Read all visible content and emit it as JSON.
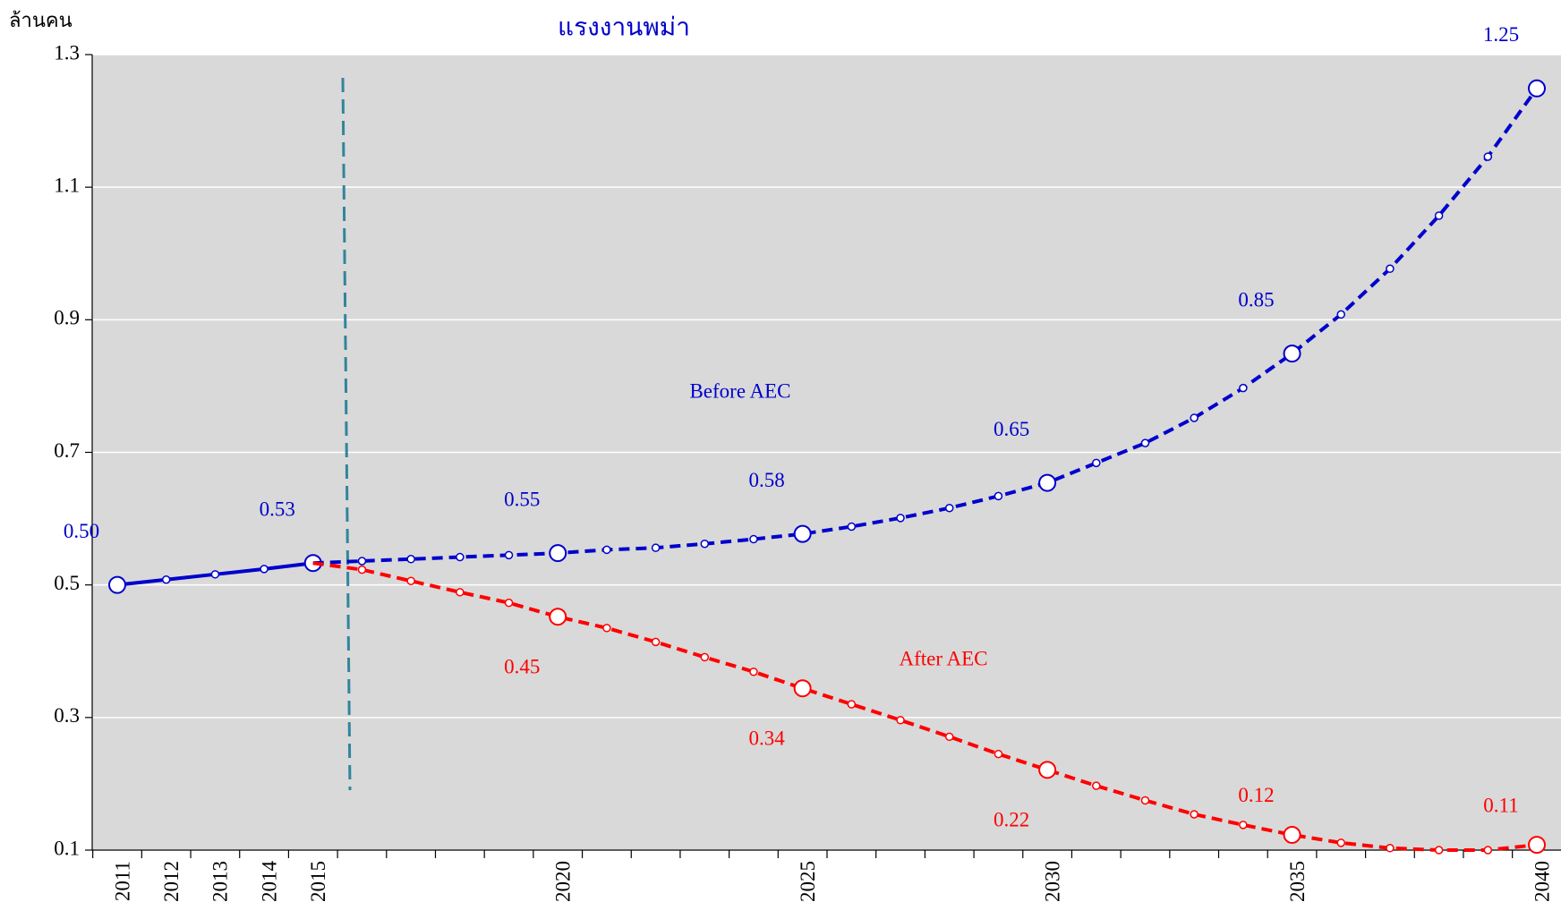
{
  "chart_data": {
    "type": "line",
    "subtitle": "แรงงานพม่า",
    "y_label": "ล้านคน",
    "categories": [
      "2011",
      "2012",
      "2013",
      "2014",
      "2015",
      null,
      null,
      null,
      null,
      "2020",
      null,
      null,
      null,
      null,
      "2025",
      null,
      null,
      null,
      null,
      "2030",
      null,
      null,
      null,
      null,
      "2035",
      null,
      null,
      null,
      null,
      "2040"
    ],
    "ylim": [
      0.1,
      1.3
    ],
    "yticks": [
      0.1,
      0.3,
      0.5,
      0.7,
      0.9,
      1.1,
      1.3
    ],
    "grid": true,
    "series": [
      {
        "color": "#0000cc",
        "line_style": "solid",
        "values": [
          0.5,
          0.508,
          0.516,
          0.524,
          0.533,
          null,
          null,
          null,
          null,
          null,
          null,
          null,
          null,
          null,
          null,
          null,
          null,
          null,
          null,
          null,
          null,
          null,
          null,
          null,
          null,
          null,
          null,
          null,
          null,
          null
        ],
        "value_labels": [
          "0.50",
          null,
          null,
          null,
          "0.53",
          null,
          null,
          null,
          null,
          null,
          null,
          null,
          null,
          null,
          null,
          null,
          null,
          null,
          null,
          null,
          null,
          null,
          null,
          null,
          null,
          null,
          null,
          null,
          null,
          null
        ]
      },
      {
        "name": "Before AEC",
        "color": "#0000cc",
        "line_style": "dashed",
        "values": [
          null,
          null,
          null,
          null,
          0.533,
          0.536,
          0.539,
          0.542,
          0.545,
          0.548,
          0.553,
          0.556,
          0.562,
          0.569,
          0.577,
          0.588,
          0.601,
          0.616,
          0.634,
          0.654,
          0.684,
          0.714,
          0.752,
          0.797,
          0.849,
          0.908,
          0.977,
          1.057,
          1.146,
          1.249
        ],
        "value_labels": [
          null,
          null,
          null,
          null,
          null,
          null,
          null,
          null,
          null,
          "0.55",
          null,
          null,
          null,
          null,
          "0.58",
          null,
          null,
          null,
          null,
          "0.65",
          null,
          null,
          null,
          null,
          "0.85",
          null,
          null,
          null,
          null,
          "1.25"
        ]
      },
      {
        "name": "After AEC",
        "color": "#ff0000",
        "line_style": "dashed",
        "values": [
          null,
          null,
          null,
          null,
          0.533,
          0.523,
          0.506,
          0.489,
          0.473,
          0.452,
          0.435,
          0.414,
          0.391,
          0.369,
          0.344,
          0.32,
          0.296,
          0.271,
          0.245,
          0.221,
          0.197,
          0.175,
          0.154,
          0.138,
          0.123,
          0.111,
          0.103,
          0.1,
          0.1,
          0.108
        ],
        "value_labels": [
          null,
          null,
          null,
          null,
          null,
          null,
          null,
          null,
          null,
          "0.45",
          null,
          null,
          null,
          null,
          "0.34",
          null,
          null,
          null,
          null,
          "0.22",
          null,
          null,
          null,
          null,
          "0.12",
          null,
          null,
          null,
          null,
          "0.11"
        ]
      }
    ]
  }
}
